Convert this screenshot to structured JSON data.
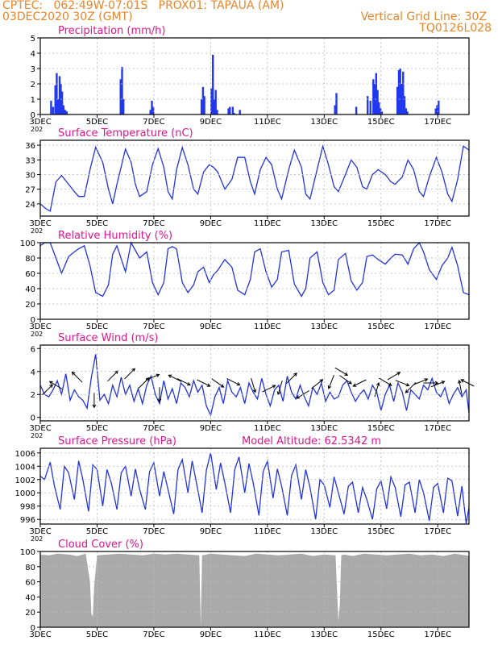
{
  "header": {
    "line1_left": "CPTEC:   062:49W-07:01S   PROX01: TAPAUA (AM)",
    "line2_left": "03DEC2020 30Z (GMT)",
    "line2_right": "Vertical Grid Line: 30Z",
    "line3_right": "TQ0126L028"
  },
  "colors": {
    "header": "#e8862a",
    "title": "#e0158f",
    "series": "#2233dd",
    "bars": "#2238ee",
    "cloud": "#aaaaaa",
    "grid": "#bbbbbb"
  },
  "x_axis": {
    "start_day": 3,
    "end_day": 18.1,
    "ticks": [
      3,
      5,
      7,
      9,
      11,
      13,
      15,
      17
    ],
    "tick_labels": [
      "3DEC",
      "5DEC",
      "7DEC",
      "9DEC",
      "11DEC",
      "13DEC",
      "15DEC",
      "17DEC"
    ],
    "year_stub": "202"
  },
  "chart_data": [
    {
      "id": "precip",
      "type": "bar",
      "title": "Precipitation (mm/h)",
      "ylim": [
        0,
        5
      ],
      "yticks": [
        0,
        1,
        2,
        3,
        4,
        5
      ],
      "grid": true,
      "x": [
        3.38,
        3.45,
        3.53,
        3.58,
        3.63,
        3.68,
        3.72,
        3.77,
        3.82,
        3.88,
        3.93,
        5.83,
        5.88,
        5.93,
        6.88,
        6.93,
        6.98,
        8.68,
        8.73,
        8.78,
        9.03,
        9.08,
        9.13,
        9.18,
        9.23,
        9.63,
        9.68,
        9.78,
        9.83,
        10.03,
        13.38,
        13.43,
        14.13,
        14.53,
        14.63,
        14.73,
        14.78,
        14.83,
        14.88,
        14.93,
        14.98,
        15.03,
        15.58,
        15.63,
        15.68,
        15.73,
        15.78,
        15.83,
        15.88,
        15.93,
        16.93,
        16.98,
        17.03
      ],
      "values": [
        0.9,
        0.5,
        1.9,
        2.7,
        1.0,
        2.5,
        2.0,
        1.5,
        0.6,
        0.3,
        0.2,
        2.3,
        3.1,
        1.0,
        0.3,
        0.9,
        0.5,
        1.0,
        1.8,
        1.2,
        1.7,
        3.9,
        1.0,
        1.6,
        0.3,
        0.4,
        0.5,
        0.5,
        0.1,
        0.3,
        0.6,
        1.4,
        0.5,
        1.2,
        0.9,
        2.3,
        2.0,
        2.7,
        1.6,
        0.8,
        0.4,
        0.2,
        1.8,
        2.9,
        3.0,
        2.0,
        2.8,
        1.2,
        0.4,
        0.2,
        0.4,
        0.6,
        0.9
      ]
    },
    {
      "id": "temp",
      "type": "line",
      "title": "Surface Temperature (nC)",
      "ylim": [
        21.5,
        37
      ],
      "yticks": [
        21,
        24,
        27,
        30,
        33,
        36
      ],
      "grid": true,
      "x": [
        3.0,
        3.2,
        3.35,
        3.55,
        3.75,
        4.0,
        4.2,
        4.35,
        4.55,
        4.75,
        4.95,
        5.2,
        5.4,
        5.55,
        5.7,
        6.0,
        6.2,
        6.35,
        6.5,
        6.75,
        6.95,
        7.15,
        7.35,
        7.5,
        7.65,
        7.8,
        8.0,
        8.2,
        8.4,
        8.55,
        8.75,
        8.95,
        9.1,
        9.25,
        9.5,
        9.75,
        9.95,
        10.2,
        10.4,
        10.55,
        10.75,
        10.95,
        11.15,
        11.35,
        11.5,
        11.75,
        11.95,
        12.2,
        12.35,
        12.5,
        12.75,
        12.95,
        13.15,
        13.35,
        13.5,
        13.75,
        13.95,
        14.15,
        14.35,
        14.5,
        14.7,
        14.9,
        15.15,
        15.35,
        15.5,
        15.75,
        15.95,
        16.15,
        16.35,
        16.5,
        16.7,
        16.95,
        17.15,
        17.35,
        17.5,
        17.7,
        17.9,
        18.1
      ],
      "values": [
        24,
        23,
        22.5,
        28.5,
        29.8,
        28,
        26.5,
        25.5,
        25.5,
        31,
        35.6,
        32.5,
        27,
        24,
        28,
        35.2,
        32.5,
        28,
        25.5,
        26.5,
        32,
        35.3,
        31.5,
        26.5,
        25,
        31,
        35.5,
        32,
        27,
        26,
        30.5,
        32,
        31.5,
        30.5,
        27,
        29,
        33.5,
        33.5,
        28.5,
        26,
        31,
        33.5,
        32,
        27,
        25,
        31,
        35,
        31.5,
        26,
        25,
        31,
        35.8,
        32,
        27.5,
        26.5,
        30,
        33,
        31.5,
        27.5,
        27,
        30,
        31,
        30,
        28.5,
        28,
        29.5,
        33,
        31,
        26.5,
        25.5,
        29.5,
        33.5,
        30.5,
        26,
        24.5,
        29,
        35.8,
        35
      ]
    },
    {
      "id": "rh",
      "type": "line",
      "title": "Relative Humidity (%)",
      "ylim": [
        0,
        100
      ],
      "yticks": [
        0,
        20,
        40,
        60,
        80,
        100
      ],
      "grid": true,
      "x": [
        3.0,
        3.15,
        3.35,
        3.55,
        3.75,
        4.0,
        4.2,
        4.35,
        4.55,
        4.75,
        4.95,
        5.2,
        5.4,
        5.55,
        5.7,
        6.0,
        6.2,
        6.35,
        6.5,
        6.75,
        6.95,
        7.15,
        7.35,
        7.5,
        7.65,
        7.8,
        8.0,
        8.2,
        8.4,
        8.55,
        8.75,
        8.95,
        9.1,
        9.25,
        9.5,
        9.75,
        9.95,
        10.2,
        10.4,
        10.55,
        10.75,
        10.95,
        11.15,
        11.35,
        11.5,
        11.75,
        11.95,
        12.2,
        12.35,
        12.5,
        12.75,
        12.95,
        13.15,
        13.35,
        13.5,
        13.75,
        13.95,
        14.15,
        14.35,
        14.5,
        14.7,
        14.9,
        15.15,
        15.35,
        15.5,
        15.75,
        15.95,
        16.15,
        16.35,
        16.5,
        16.7,
        16.95,
        17.15,
        17.35,
        17.5,
        17.7,
        17.9,
        18.1
      ],
      "values": [
        96,
        100,
        100,
        80,
        60,
        82,
        88,
        92,
        96,
        70,
        35,
        30,
        45,
        85,
        96,
        62,
        100,
        90,
        80,
        88,
        48,
        32,
        48,
        92,
        95,
        92,
        48,
        35,
        45,
        62,
        68,
        48,
        58,
        64,
        78,
        68,
        38,
        32,
        52,
        88,
        92,
        62,
        42,
        52,
        88,
        90,
        46,
        30,
        40,
        80,
        88,
        48,
        32,
        38,
        78,
        86,
        50,
        38,
        48,
        82,
        84,
        78,
        72,
        80,
        85,
        84,
        72,
        92,
        100,
        88,
        65,
        52,
        70,
        80,
        94,
        70,
        35,
        32
      ]
    },
    {
      "id": "wind",
      "type": "line",
      "title": "Surface Wind (m/s)",
      "ylim": [
        -0.3,
        6.3
      ],
      "yticks": [
        0,
        2,
        4,
        6
      ],
      "grid": true,
      "x": [
        3.0,
        3.15,
        3.3,
        3.45,
        3.6,
        3.75,
        3.9,
        4.05,
        4.2,
        4.35,
        4.5,
        4.65,
        4.8,
        4.95,
        5.1,
        5.25,
        5.4,
        5.55,
        5.7,
        5.85,
        6.0,
        6.15,
        6.3,
        6.45,
        6.6,
        6.75,
        6.9,
        7.05,
        7.2,
        7.35,
        7.5,
        7.65,
        7.8,
        7.95,
        8.1,
        8.25,
        8.4,
        8.55,
        8.7,
        8.85,
        9.0,
        9.15,
        9.3,
        9.45,
        9.6,
        9.75,
        9.9,
        10.05,
        10.2,
        10.35,
        10.5,
        10.65,
        10.8,
        10.95,
        11.1,
        11.25,
        11.4,
        11.55,
        11.7,
        11.85,
        12.0,
        12.15,
        12.3,
        12.45,
        12.6,
        12.75,
        12.9,
        13.05,
        13.2,
        13.35,
        13.5,
        13.65,
        13.8,
        13.95,
        14.1,
        14.25,
        14.4,
        14.55,
        14.7,
        14.85,
        15.0,
        15.15,
        15.3,
        15.45,
        15.6,
        15.75,
        15.9,
        16.05,
        16.2,
        16.35,
        16.5,
        16.65,
        16.8,
        16.95,
        17.1,
        17.25,
        17.4,
        17.55,
        17.7,
        17.85,
        18.0,
        18.1
      ],
      "values": [
        2.8,
        2.0,
        1.8,
        2.4,
        3.2,
        2.0,
        3.8,
        1.5,
        2.4,
        1.8,
        1.5,
        0.8,
        3.5,
        5.5,
        1.5,
        2.0,
        1.2,
        2.8,
        1.8,
        3.5,
        2.0,
        2.8,
        1.4,
        2.5,
        1.2,
        2.8,
        3.6,
        2.0,
        1.2,
        3.2,
        1.6,
        2.5,
        1.2,
        3.0,
        2.6,
        1.8,
        3.2,
        2.2,
        2.8,
        1.0,
        0.2,
        1.8,
        2.6,
        1.2,
        3.2,
        2.2,
        1.8,
        2.6,
        1.2,
        3.0,
        2.2,
        1.6,
        3.4,
        2.0,
        1.0,
        2.4,
        2.8,
        1.4,
        3.6,
        2.2,
        1.6,
        2.8,
        1.8,
        1.0,
        2.6,
        2.0,
        3.0,
        1.4,
        2.2,
        1.6,
        1.8,
        2.8,
        3.2,
        2.2,
        1.4,
        2.0,
        2.4,
        1.6,
        2.8,
        2.2,
        0.6,
        2.0,
        2.8,
        1.4,
        3.0,
        2.2,
        0.6,
        2.4,
        2.0,
        1.6,
        2.8,
        2.4,
        3.4,
        2.2,
        1.8,
        2.6,
        1.2,
        2.0,
        2.6,
        1.8,
        2.4,
        0.4
      ],
      "vectors": [
        {
          "x": 3.25,
          "y": 2.4,
          "u": 1,
          "v": 1
        },
        {
          "x": 3.55,
          "y": 2.8,
          "u": -1,
          "v": 0.6
        },
        {
          "x": 4.3,
          "y": 3.5,
          "u": -1,
          "v": 1
        },
        {
          "x": 4.9,
          "y": 1.5,
          "u": 0,
          "v": -1
        },
        {
          "x": 5.55,
          "y": 3.6,
          "u": 1,
          "v": 1
        },
        {
          "x": 6.15,
          "y": 3.8,
          "u": 1,
          "v": 1
        },
        {
          "x": 6.65,
          "y": 3.0,
          "u": 1,
          "v": 1
        },
        {
          "x": 6.95,
          "y": 3.5,
          "u": 1,
          "v": 0.4
        },
        {
          "x": 7.2,
          "y": 2.0,
          "u": 0,
          "v": -1
        },
        {
          "x": 7.75,
          "y": 3.4,
          "u": -1,
          "v": 0.5
        },
        {
          "x": 8.05,
          "y": 3.1,
          "u": 1,
          "v": -0.5
        },
        {
          "x": 8.75,
          "y": 3.0,
          "u": 1,
          "v": -0.5
        },
        {
          "x": 9.25,
          "y": 3.0,
          "u": 1,
          "v": -0.7
        },
        {
          "x": 9.8,
          "y": 3.1,
          "u": 1,
          "v": -0.5
        },
        {
          "x": 10.5,
          "y": 2.8,
          "u": 0.3,
          "v": -1
        },
        {
          "x": 11.05,
          "y": 2.5,
          "u": 1,
          "v": 0.5
        },
        {
          "x": 11.45,
          "y": 2.6,
          "u": -0.3,
          "v": -1
        },
        {
          "x": 11.85,
          "y": 3.4,
          "u": 1,
          "v": 1
        },
        {
          "x": 12.25,
          "y": 2.0,
          "u": -1,
          "v": -0.6
        },
        {
          "x": 12.75,
          "y": 2.9,
          "u": 1,
          "v": 0.8
        },
        {
          "x": 13.25,
          "y": 3.1,
          "u": -0.4,
          "v": -1
        },
        {
          "x": 13.6,
          "y": 4.0,
          "u": 1,
          "v": -0.6
        },
        {
          "x": 13.75,
          "y": 3.3,
          "u": 1,
          "v": -0.7
        },
        {
          "x": 14.25,
          "y": 3.0,
          "u": -1,
          "v": -0.5
        },
        {
          "x": 14.85,
          "y": 2.4,
          "u": 0.3,
          "v": 1
        },
        {
          "x": 15.15,
          "y": 3.1,
          "u": 1,
          "v": -0.6
        },
        {
          "x": 15.45,
          "y": 3.6,
          "u": 1,
          "v": 0.6
        },
        {
          "x": 15.75,
          "y": 3.0,
          "u": 1,
          "v": -0.4
        },
        {
          "x": 16.05,
          "y": 2.6,
          "u": -1,
          "v": -1
        },
        {
          "x": 16.4,
          "y": 3.1,
          "u": 1,
          "v": 0.4
        },
        {
          "x": 16.75,
          "y": 3.0,
          "u": 1,
          "v": 0
        },
        {
          "x": 17.0,
          "y": 2.9,
          "u": 1,
          "v": 0.4
        },
        {
          "x": 17.8,
          "y": 2.6,
          "u": -0.2,
          "v": 1
        },
        {
          "x": 18.05,
          "y": 3.0,
          "u": -1,
          "v": 0.5
        }
      ]
    },
    {
      "id": "pressure",
      "type": "line",
      "title": "Surface Pressure (hPa)",
      "annotation": "Model Altitude: 62.5342 m",
      "ylim": [
        995.3,
        1006.7
      ],
      "yticks": [
        996,
        998,
        1000,
        1002,
        1004,
        1006
      ],
      "grid": true,
      "x": [
        3.0,
        3.15,
        3.35,
        3.5,
        3.7,
        3.85,
        4.0,
        4.2,
        4.35,
        4.5,
        4.7,
        4.85,
        5.0,
        5.2,
        5.35,
        5.5,
        5.7,
        5.85,
        6.0,
        6.2,
        6.35,
        6.5,
        6.7,
        6.85,
        7.0,
        7.2,
        7.35,
        7.5,
        7.7,
        7.85,
        8.0,
        8.2,
        8.35,
        8.5,
        8.7,
        8.85,
        9.0,
        9.2,
        9.35,
        9.5,
        9.7,
        9.85,
        10.0,
        10.2,
        10.35,
        10.5,
        10.7,
        10.85,
        11.0,
        11.2,
        11.35,
        11.5,
        11.7,
        11.85,
        12.0,
        12.2,
        12.35,
        12.5,
        12.7,
        12.85,
        13.0,
        13.2,
        13.35,
        13.5,
        13.7,
        13.85,
        14.0,
        14.2,
        14.35,
        14.5,
        14.7,
        14.85,
        15.0,
        15.2,
        15.35,
        15.5,
        15.7,
        15.85,
        16.0,
        16.2,
        16.35,
        16.5,
        16.7,
        16.85,
        17.0,
        17.2,
        17.35,
        17.5,
        17.7,
        17.85,
        18.0,
        18.1
      ],
      "values": [
        1002.5,
        1002,
        1004.6,
        1001,
        997.5,
        1004,
        1003,
        999,
        1004.8,
        1002,
        997.2,
        1004.2,
        1003.5,
        998,
        1003.5,
        1001.5,
        997.5,
        1003,
        1004,
        999.5,
        1003.6,
        1000.5,
        997.5,
        1003.2,
        1004.5,
        999.5,
        1003.2,
        1000.5,
        996.8,
        1003.5,
        1005,
        1000,
        1004.8,
        1001.5,
        997,
        1003.4,
        1006,
        1000.5,
        1004.5,
        1001.5,
        997,
        1003.5,
        1005.4,
        1000,
        1004.4,
        1001.5,
        996.6,
        1003.2,
        1004.8,
        999.2,
        1003.6,
        1001,
        996.6,
        1002.6,
        1004.2,
        999,
        1003.5,
        1000.8,
        996,
        1002,
        1001.2,
        997.8,
        1002.4,
        1000,
        996.8,
        1001,
        1001.6,
        997,
        1000.8,
        999,
        996,
        1000.6,
        1001.8,
        997.6,
        1002.4,
        1000.8,
        996.4,
        1001.2,
        1001.6,
        997,
        1002,
        1000,
        995.8,
        1000.8,
        1001.4,
        997,
        1002.2,
        1001.8,
        996.5,
        1001,
        995.4,
        997.8
      ]
    },
    {
      "id": "cloud",
      "type": "area",
      "title": "Cloud Cover (%)",
      "ylim": [
        0,
        100
      ],
      "yticks": [
        0,
        20,
        40,
        60,
        80,
        100
      ],
      "grid": true,
      "x": [
        3.0,
        3.3,
        3.6,
        4.0,
        4.3,
        4.6,
        4.75,
        4.8,
        4.85,
        4.9,
        5.0,
        5.4,
        5.8,
        6.2,
        6.6,
        7.0,
        7.4,
        7.8,
        8.2,
        8.6,
        8.65,
        8.7,
        9.0,
        9.4,
        9.8,
        10.2,
        10.6,
        11.0,
        11.4,
        11.8,
        12.2,
        12.6,
        13.0,
        13.4,
        13.5,
        13.55,
        13.6,
        13.7,
        14.0,
        14.4,
        14.8,
        15.2,
        15.6,
        16.0,
        16.4,
        16.8,
        17.2,
        17.6,
        18.0,
        18.1
      ],
      "values": [
        96,
        95,
        97,
        96,
        94,
        97,
        60,
        18,
        14,
        55,
        95,
        96,
        97,
        96,
        95,
        97,
        96,
        97,
        96,
        95,
        2,
        95,
        97,
        96,
        95,
        94,
        97,
        96,
        95,
        96,
        97,
        94,
        96,
        95,
        8,
        30,
        95,
        96,
        94,
        97,
        96,
        95,
        96,
        97,
        95,
        96,
        94,
        97,
        95,
        94
      ]
    }
  ]
}
